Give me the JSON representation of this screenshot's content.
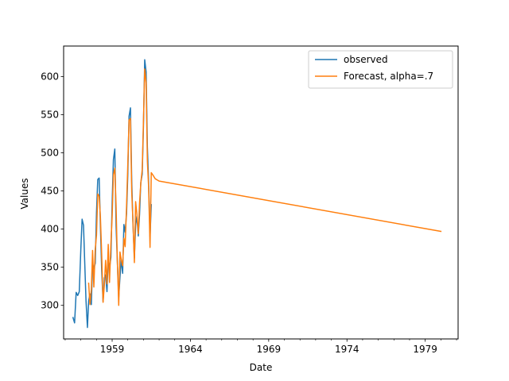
{
  "chart_data": {
    "type": "line",
    "title": "",
    "xlabel": "Date",
    "ylabel": "Values",
    "xlim": [
      1955.9,
      1981.1
    ],
    "ylim": [
      256,
      640
    ],
    "x_ticks": [
      1959,
      1964,
      1969,
      1974,
      1979
    ],
    "x_tick_labels": [
      "1959",
      "1964",
      "1969",
      "1974",
      "1979"
    ],
    "y_ticks": [
      300,
      350,
      400,
      450,
      500,
      550,
      600
    ],
    "y_tick_labels": [
      "300",
      "350",
      "400",
      "450",
      "500",
      "550",
      "600"
    ],
    "legend_position": "top-right",
    "series": [
      {
        "name": "observed",
        "color": "#1f77b4",
        "points": [
          [
            1956.5,
            284
          ],
          [
            1956.6,
            277
          ],
          [
            1956.7,
            317
          ],
          [
            1956.8,
            313
          ],
          [
            1956.9,
            318
          ],
          [
            1957.0,
            374
          ],
          [
            1957.08,
            413
          ],
          [
            1957.17,
            405
          ],
          [
            1957.25,
            355
          ],
          [
            1957.33,
            306
          ],
          [
            1957.42,
            271
          ],
          [
            1957.5,
            306
          ],
          [
            1957.58,
            315
          ],
          [
            1957.67,
            301
          ],
          [
            1957.75,
            356
          ],
          [
            1957.83,
            348
          ],
          [
            1957.92,
            355
          ],
          [
            1958.0,
            422
          ],
          [
            1958.08,
            465
          ],
          [
            1958.17,
            467
          ],
          [
            1958.25,
            404
          ],
          [
            1958.33,
            347
          ],
          [
            1958.42,
            305
          ],
          [
            1958.5,
            336
          ],
          [
            1958.58,
            340
          ],
          [
            1958.67,
            318
          ],
          [
            1958.75,
            362
          ],
          [
            1958.83,
            348
          ],
          [
            1958.92,
            363
          ],
          [
            1959.0,
            435
          ],
          [
            1959.08,
            491
          ],
          [
            1959.17,
            505
          ],
          [
            1959.25,
            404
          ],
          [
            1959.33,
            359
          ],
          [
            1959.42,
            310
          ],
          [
            1959.5,
            337
          ],
          [
            1959.58,
            360
          ],
          [
            1959.67,
            342
          ],
          [
            1959.75,
            406
          ],
          [
            1959.83,
            396
          ],
          [
            1959.92,
            420
          ],
          [
            1960.0,
            472
          ],
          [
            1960.08,
            548
          ],
          [
            1960.17,
            559
          ],
          [
            1960.25,
            463
          ],
          [
            1960.33,
            407
          ],
          [
            1960.42,
            362
          ],
          [
            1960.5,
            405
          ],
          [
            1960.58,
            417
          ],
          [
            1960.67,
            391
          ],
          [
            1960.75,
            419
          ],
          [
            1960.83,
            461
          ],
          [
            1960.92,
            472
          ],
          [
            1961.0,
            535
          ],
          [
            1961.08,
            622
          ],
          [
            1961.17,
            606
          ],
          [
            1961.25,
            508
          ],
          [
            1961.33,
            461
          ],
          [
            1961.42,
            390
          ],
          [
            1961.5,
            432
          ]
        ]
      },
      {
        "name": "Forecast, alpha=.7",
        "color": "#ff7f0e",
        "points": [
          [
            1957.5,
            329
          ],
          [
            1957.58,
            301
          ],
          [
            1957.67,
            321
          ],
          [
            1957.75,
            372
          ],
          [
            1957.83,
            324
          ],
          [
            1957.92,
            374
          ],
          [
            1958.0,
            392
          ],
          [
            1958.08,
            446
          ],
          [
            1958.17,
            443
          ],
          [
            1958.25,
            416
          ],
          [
            1958.33,
            368
          ],
          [
            1958.42,
            304
          ],
          [
            1958.5,
            326
          ],
          [
            1958.58,
            359
          ],
          [
            1958.67,
            328
          ],
          [
            1958.75,
            380
          ],
          [
            1958.83,
            330
          ],
          [
            1958.92,
            380
          ],
          [
            1959.0,
            417
          ],
          [
            1959.08,
            471
          ],
          [
            1959.17,
            480
          ],
          [
            1959.25,
            431
          ],
          [
            1959.33,
            359
          ],
          [
            1959.42,
            300
          ],
          [
            1959.5,
            370
          ],
          [
            1959.58,
            360
          ],
          [
            1959.67,
            352
          ],
          [
            1959.75,
            388
          ],
          [
            1959.83,
            377
          ],
          [
            1959.92,
            430
          ],
          [
            1960.0,
            485
          ],
          [
            1960.08,
            543
          ],
          [
            1960.17,
            545
          ],
          [
            1960.25,
            449
          ],
          [
            1960.33,
            410
          ],
          [
            1960.42,
            356
          ],
          [
            1960.5,
            436
          ],
          [
            1960.58,
            420
          ],
          [
            1960.67,
            394
          ],
          [
            1960.75,
            434
          ],
          [
            1960.83,
            460
          ],
          [
            1960.92,
            478
          ],
          [
            1961.0,
            542
          ],
          [
            1961.08,
            610
          ],
          [
            1961.17,
            592
          ],
          [
            1961.25,
            489
          ],
          [
            1961.33,
            455
          ],
          [
            1961.42,
            376
          ],
          [
            1961.5,
            474
          ],
          [
            1961.6,
            471
          ],
          [
            1961.75,
            466
          ],
          [
            1962.0,
            463
          ],
          [
            1980.0,
            397
          ]
        ]
      }
    ]
  }
}
